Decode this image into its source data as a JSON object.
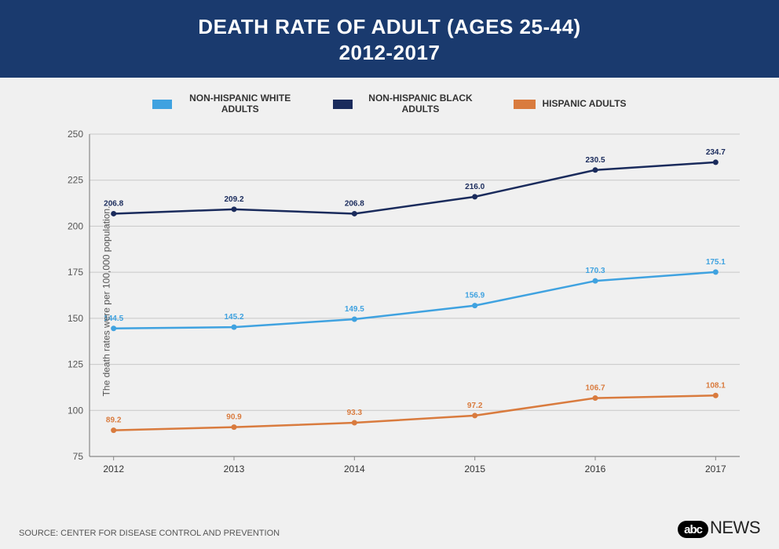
{
  "header": {
    "line1": "DEATH RATE OF ADULT (AGES 25-44)",
    "line2": "2012-2017"
  },
  "legend": {
    "series1": {
      "label": "NON-HISPANIC WHITE ADULTS",
      "color": "#3fa2e0"
    },
    "series2": {
      "label": "NON-HISPANIC BLACK ADULTS",
      "color": "#1a2b5c"
    },
    "series3": {
      "label": "HISPANIC ADULTS",
      "color": "#d97b3e"
    }
  },
  "chart": {
    "type": "line",
    "y_axis_label": "The death rates were per 100,000 population.",
    "x_categories": [
      "2012",
      "2013",
      "2014",
      "2015",
      "2016",
      "2017"
    ],
    "ylim": [
      75,
      250
    ],
    "ytick_step": 25,
    "background_color": "#f0f0f0",
    "grid_color": "#c8c8c8",
    "axis_color": "#888888",
    "tick_font_size": 12,
    "label_font_size": 10,
    "line_width": 2.5,
    "marker_radius": 3.5,
    "series": [
      {
        "name": "non_hispanic_black",
        "color": "#1a2b5c",
        "label_pos": "above",
        "values": [
          206.8,
          209.2,
          206.8,
          216.0,
          230.5,
          234.7
        ]
      },
      {
        "name": "non_hispanic_white",
        "color": "#3fa2e0",
        "label_pos": "above",
        "values": [
          144.5,
          145.2,
          149.5,
          156.9,
          170.3,
          175.1
        ]
      },
      {
        "name": "hispanic",
        "color": "#d97b3e",
        "label_pos": "above",
        "values": [
          89.2,
          90.9,
          93.3,
          97.2,
          106.7,
          108.1
        ]
      }
    ]
  },
  "footer": {
    "source": "SOURCE: CENTER FOR DISEASE CONTROL AND PREVENTION",
    "logo_abc": "abc",
    "logo_news": "NEWS"
  }
}
